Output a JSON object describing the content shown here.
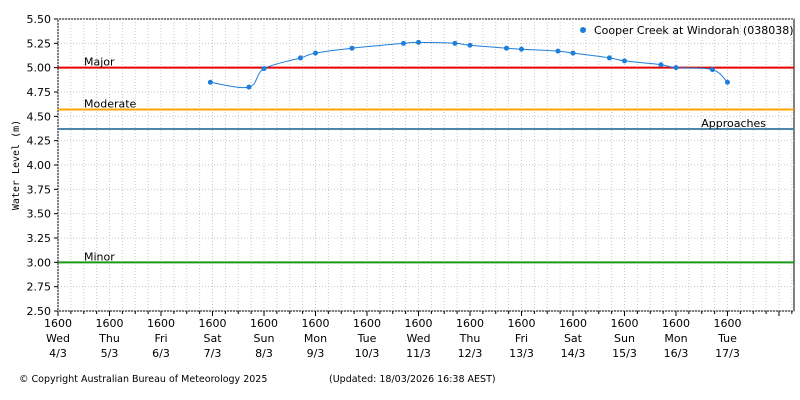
{
  "footer": {
    "copyright": "© Copyright Australian Bureau of Meteorology 2025",
    "updated": "(Updated: 18/03/2026 16:38 AEST)"
  },
  "chart_data": {
    "type": "line",
    "title": "",
    "xlabel": "",
    "ylabel": "Water Level (m)",
    "ylim": [
      2.5,
      5.5
    ],
    "xlim": [
      "2026-03-04T16:00",
      "2026-03-18T23:00"
    ],
    "yticks": [
      "2.50",
      "2.75",
      "3.00",
      "3.25",
      "3.50",
      "3.75",
      "4.00",
      "4.25",
      "4.50",
      "4.75",
      "5.00",
      "5.25",
      "5.50"
    ],
    "xticks": [
      {
        "time": "1600",
        "day": "Wed",
        "date": "4/3",
        "x": "2026-03-04T16:00"
      },
      {
        "time": "1600",
        "day": "Thu",
        "date": "5/3",
        "x": "2026-03-05T16:00"
      },
      {
        "time": "1600",
        "day": "Fri",
        "date": "6/3",
        "x": "2026-03-06T16:00"
      },
      {
        "time": "1600",
        "day": "Sat",
        "date": "7/3",
        "x": "2026-03-07T16:00"
      },
      {
        "time": "1600",
        "day": "Sun",
        "date": "8/3",
        "x": "2026-03-08T16:00"
      },
      {
        "time": "1600",
        "day": "Mon",
        "date": "9/3",
        "x": "2026-03-09T16:00"
      },
      {
        "time": "1600",
        "day": "Tue",
        "date": "10/3",
        "x": "2026-03-10T16:00"
      },
      {
        "time": "1600",
        "day": "Wed",
        "date": "11/3",
        "x": "2026-03-11T16:00"
      },
      {
        "time": "1600",
        "day": "Thu",
        "date": "12/3",
        "x": "2026-03-12T16:00"
      },
      {
        "time": "1600",
        "day": "Fri",
        "date": "13/3",
        "x": "2026-03-13T16:00"
      },
      {
        "time": "1600",
        "day": "Sat",
        "date": "14/3",
        "x": "2026-03-14T16:00"
      },
      {
        "time": "1600",
        "day": "Sun",
        "date": "15/3",
        "x": "2026-03-15T16:00"
      },
      {
        "time": "1600",
        "day": "Mon",
        "date": "16/3",
        "x": "2026-03-16T16:00"
      },
      {
        "time": "1600",
        "day": "Tue",
        "date": "17/3",
        "x": "2026-03-17T16:00"
      }
    ],
    "grid": true,
    "legend_position": "top-right",
    "series": [
      {
        "name": "Cooper Creek at Windorah (038038)",
        "color": "#1e7fd9",
        "points": [
          {
            "x": "2026-03-07T15:00",
            "y": 4.85
          },
          {
            "x": "2026-03-08T09:00",
            "y": 4.8
          },
          {
            "x": "2026-03-08T16:00",
            "y": 4.99
          },
          {
            "x": "2026-03-09T09:00",
            "y": 5.1
          },
          {
            "x": "2026-03-09T16:00",
            "y": 5.15
          },
          {
            "x": "2026-03-10T09:00",
            "y": 5.2
          },
          {
            "x": "2026-03-11T09:00",
            "y": 5.25
          },
          {
            "x": "2026-03-11T16:00",
            "y": 5.26
          },
          {
            "x": "2026-03-12T09:00",
            "y": 5.25
          },
          {
            "x": "2026-03-12T16:00",
            "y": 5.23
          },
          {
            "x": "2026-03-13T09:00",
            "y": 5.2
          },
          {
            "x": "2026-03-13T16:00",
            "y": 5.19
          },
          {
            "x": "2026-03-14T09:00",
            "y": 5.17
          },
          {
            "x": "2026-03-14T16:00",
            "y": 5.15
          },
          {
            "x": "2026-03-15T09:00",
            "y": 5.1
          },
          {
            "x": "2026-03-15T16:00",
            "y": 5.07
          },
          {
            "x": "2026-03-16T09:00",
            "y": 5.03
          },
          {
            "x": "2026-03-16T16:00",
            "y": 5.0
          },
          {
            "x": "2026-03-17T09:00",
            "y": 4.98
          },
          {
            "x": "2026-03-17T16:00",
            "y": 4.85
          }
        ]
      }
    ],
    "reference_lines": [
      {
        "label": "Major",
        "y": 5.0,
        "color": "#e60000"
      },
      {
        "label": "Moderate",
        "y": 4.57,
        "color": "#ffa500"
      },
      {
        "label": "Approaches",
        "y": 4.37,
        "color": "#4f86a8"
      },
      {
        "label": "Minor",
        "y": 3.0,
        "color": "#1a9a1a"
      }
    ]
  }
}
